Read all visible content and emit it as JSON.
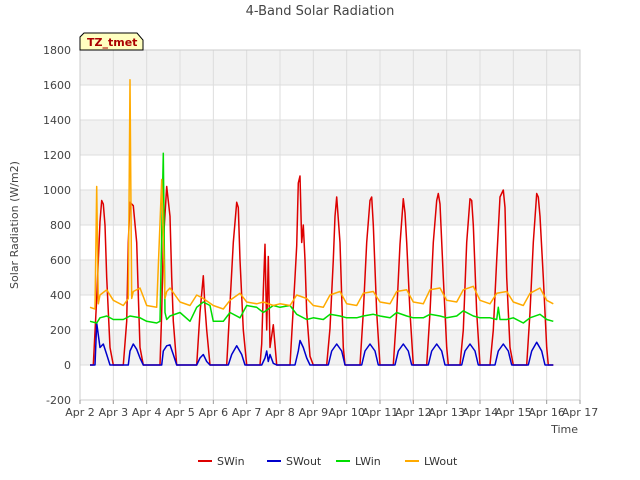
{
  "chart_data": {
    "type": "line",
    "title": "4-Band Solar Radiation",
    "xlabel": "Time",
    "ylabel": "Solar Radiation (W/m2)",
    "annotation": "TZ_tmet",
    "xlim": [
      2,
      17
    ],
    "ylim": [
      -200,
      1800
    ],
    "x_ticks": [
      2,
      3,
      4,
      5,
      6,
      7,
      8,
      9,
      10,
      11,
      12,
      13,
      14,
      15,
      16,
      17
    ],
    "x_tick_labels": [
      "Apr 2",
      "Apr 3",
      "Apr 4",
      "Apr 5",
      "Apr 6",
      "Apr 7",
      "Apr 8",
      "Apr 9",
      "Apr 10",
      "Apr 11",
      "Apr 12",
      "Apr 13",
      "Apr 14",
      "Apr 15",
      "Apr 16",
      "Apr 17"
    ],
    "y_ticks": [
      -200,
      0,
      200,
      400,
      600,
      800,
      1000,
      1200,
      1400,
      1600,
      1800
    ],
    "y_tick_labels": [
      "-200",
      "0",
      "200",
      "400",
      "600",
      "800",
      "1000",
      "1200",
      "1400",
      "1600",
      "1800"
    ],
    "grid": true,
    "legend_position": "bottom",
    "series": [
      {
        "name": "SWin",
        "color": "#dd0000",
        "x": [
          2.3,
          2.4,
          2.5,
          2.6,
          2.65,
          2.7,
          2.75,
          2.8,
          2.9,
          3.0,
          3.05,
          3.1,
          3.3,
          3.4,
          3.45,
          3.5,
          3.6,
          3.7,
          3.75,
          3.8,
          3.9,
          3.95,
          4.0,
          4.05,
          4.1,
          4.3,
          4.4,
          4.45,
          4.5,
          4.6,
          4.7,
          4.75,
          4.8,
          4.9,
          5.0,
          5.05,
          5.1,
          5.3,
          5.4,
          5.5,
          5.6,
          5.7,
          5.75,
          5.8,
          5.9,
          6.0,
          6.05,
          6.1,
          6.3,
          6.4,
          6.5,
          6.6,
          6.7,
          6.75,
          6.8,
          6.9,
          7.0,
          7.05,
          7.1,
          7.3,
          7.4,
          7.45,
          7.5,
          7.55,
          7.6,
          7.65,
          7.7,
          7.8,
          7.9,
          8.0,
          8.05,
          8.1,
          8.3,
          8.45,
          8.5,
          8.55,
          8.6,
          8.65,
          8.7,
          8.75,
          8.8,
          8.9,
          9.0,
          9.05,
          9.1,
          9.4,
          9.5,
          9.6,
          9.65,
          9.7,
          9.8,
          9.9,
          9.95,
          10.4,
          10.5,
          10.6,
          10.7,
          10.75,
          10.8,
          10.9,
          11.0,
          11.05,
          11.4,
          11.5,
          11.6,
          11.7,
          11.75,
          11.8,
          11.9,
          12.0,
          12.05,
          12.3,
          12.4,
          12.5,
          12.6,
          12.7,
          12.75,
          12.8,
          12.9,
          13.0,
          13.05,
          13.3,
          13.4,
          13.5,
          13.6,
          13.7,
          13.75,
          13.8,
          13.9,
          14.0,
          14.05,
          14.3,
          14.4,
          14.5,
          14.6,
          14.7,
          14.75,
          14.8,
          14.9,
          15.0,
          15.05,
          15.3,
          15.4,
          15.5,
          15.6,
          15.7,
          15.75,
          15.8,
          15.9,
          16.0,
          16.05,
          16.2
        ],
        "y": [
          0,
          0,
          380,
          820,
          940,
          920,
          800,
          500,
          100,
          0,
          0,
          0,
          0,
          250,
          700,
          930,
          910,
          700,
          400,
          100,
          0,
          0,
          0,
          0,
          0,
          0,
          0,
          300,
          700,
          1020,
          850,
          500,
          250,
          0,
          0,
          0,
          0,
          0,
          0,
          0,
          300,
          510,
          330,
          200,
          0,
          0,
          0,
          0,
          0,
          0,
          350,
          700,
          930,
          900,
          600,
          200,
          0,
          0,
          0,
          0,
          0,
          120,
          420,
          690,
          200,
          620,
          100,
          230,
          0,
          0,
          0,
          0,
          0,
          500,
          680,
          1040,
          1080,
          700,
          800,
          600,
          300,
          50,
          0,
          0,
          0,
          0,
          210,
          600,
          850,
          960,
          700,
          100,
          0,
          0,
          300,
          700,
          940,
          960,
          800,
          300,
          0,
          0,
          0,
          300,
          690,
          950,
          870,
          700,
          300,
          0,
          0,
          0,
          0,
          300,
          700,
          940,
          980,
          920,
          500,
          100,
          0,
          0,
          0,
          200,
          700,
          950,
          940,
          800,
          300,
          0,
          0,
          0,
          200,
          600,
          960,
          1000,
          900,
          500,
          100,
          0,
          0,
          0,
          0,
          300,
          700,
          980,
          960,
          850,
          500,
          100,
          0,
          0
        ]
      },
      {
        "name": "SWout",
        "color": "#0000cc",
        "x": [
          2.3,
          2.45,
          2.5,
          2.6,
          2.7,
          2.8,
          2.9,
          3.0,
          3.45,
          3.5,
          3.6,
          3.7,
          3.8,
          3.9,
          4.0,
          4.45,
          4.5,
          4.6,
          4.7,
          4.8,
          4.9,
          5.0,
          5.5,
          5.6,
          5.7,
          5.8,
          5.9,
          6.0,
          6.45,
          6.55,
          6.7,
          6.85,
          6.95,
          7.0,
          7.45,
          7.55,
          7.6,
          7.65,
          7.7,
          7.8,
          7.9,
          8.0,
          8.45,
          8.55,
          8.6,
          8.7,
          8.8,
          8.9,
          9.0,
          9.45,
          9.55,
          9.7,
          9.85,
          9.95,
          10.45,
          10.55,
          10.7,
          10.85,
          10.95,
          11.45,
          11.55,
          11.7,
          11.85,
          11.95,
          12.45,
          12.55,
          12.7,
          12.85,
          12.95,
          13.45,
          13.55,
          13.7,
          13.85,
          13.95,
          14.45,
          14.55,
          14.7,
          14.85,
          14.95,
          15.45,
          15.55,
          15.7,
          15.85,
          15.95,
          16.2
        ],
        "y": [
          0,
          0,
          240,
          100,
          120,
          60,
          0,
          0,
          0,
          80,
          120,
          90,
          40,
          0,
          0,
          0,
          80,
          110,
          115,
          60,
          0,
          0,
          0,
          40,
          60,
          20,
          0,
          0,
          0,
          60,
          110,
          60,
          0,
          0,
          0,
          40,
          80,
          20,
          60,
          10,
          0,
          0,
          0,
          80,
          140,
          100,
          40,
          0,
          0,
          0,
          80,
          120,
          80,
          0,
          0,
          80,
          120,
          80,
          0,
          0,
          80,
          120,
          80,
          0,
          0,
          80,
          120,
          80,
          0,
          0,
          80,
          120,
          80,
          0,
          0,
          80,
          120,
          80,
          0,
          0,
          80,
          130,
          80,
          0,
          0
        ]
      },
      {
        "name": "LWin",
        "color": "#00dd00",
        "x": [
          2.3,
          2.5,
          2.6,
          2.8,
          3.0,
          3.3,
          3.5,
          3.8,
          4.0,
          4.3,
          4.4,
          4.5,
          4.55,
          4.6,
          4.7,
          5.0,
          5.3,
          5.5,
          5.7,
          5.9,
          6.0,
          6.3,
          6.5,
          6.8,
          7.0,
          7.3,
          7.5,
          7.8,
          8.0,
          8.3,
          8.5,
          8.8,
          9.0,
          9.3,
          9.5,
          9.8,
          10.0,
          10.3,
          10.5,
          10.8,
          11.0,
          11.3,
          11.5,
          11.8,
          12.0,
          12.3,
          12.5,
          12.8,
          13.0,
          13.3,
          13.5,
          13.8,
          14.0,
          14.3,
          14.5,
          14.55,
          14.6,
          14.8,
          15.0,
          15.3,
          15.5,
          15.8,
          16.0,
          16.2
        ],
        "y": [
          250,
          240,
          270,
          280,
          260,
          260,
          280,
          270,
          250,
          240,
          250,
          1210,
          300,
          260,
          280,
          300,
          250,
          330,
          360,
          340,
          250,
          250,
          300,
          270,
          340,
          330,
          300,
          340,
          330,
          340,
          290,
          260,
          270,
          260,
          290,
          280,
          270,
          270,
          280,
          290,
          280,
          270,
          300,
          280,
          270,
          270,
          290,
          280,
          270,
          280,
          310,
          280,
          270,
          270,
          260,
          330,
          260,
          260,
          270,
          240,
          270,
          290,
          260,
          250
        ]
      },
      {
        "name": "LWout",
        "color": "#ffaa00",
        "x": [
          2.3,
          2.45,
          2.5,
          2.55,
          2.6,
          2.8,
          3.0,
          3.3,
          3.45,
          3.5,
          3.55,
          3.6,
          3.8,
          4.0,
          4.3,
          4.45,
          4.55,
          4.6,
          4.7,
          5.0,
          5.3,
          5.5,
          5.7,
          6.0,
          6.3,
          6.5,
          6.8,
          7.0,
          7.3,
          7.5,
          7.8,
          8.0,
          8.3,
          8.5,
          8.8,
          9.0,
          9.3,
          9.5,
          9.8,
          10.0,
          10.3,
          10.5,
          10.8,
          11.0,
          11.3,
          11.5,
          11.8,
          12.0,
          12.3,
          12.5,
          12.8,
          13.0,
          13.3,
          13.5,
          13.8,
          14.0,
          14.3,
          14.5,
          14.8,
          15.0,
          15.3,
          15.5,
          15.8,
          16.0,
          16.2
        ],
        "y": [
          330,
          320,
          1020,
          350,
          400,
          430,
          370,
          340,
          380,
          1630,
          380,
          420,
          440,
          340,
          330,
          1060,
          380,
          420,
          440,
          360,
          340,
          400,
          380,
          340,
          320,
          370,
          410,
          360,
          350,
          360,
          340,
          350,
          340,
          400,
          380,
          340,
          330,
          400,
          420,
          350,
          340,
          410,
          420,
          360,
          350,
          420,
          430,
          360,
          350,
          430,
          440,
          370,
          360,
          430,
          450,
          370,
          350,
          410,
          420,
          360,
          340,
          410,
          440,
          370,
          350
        ]
      }
    ]
  }
}
